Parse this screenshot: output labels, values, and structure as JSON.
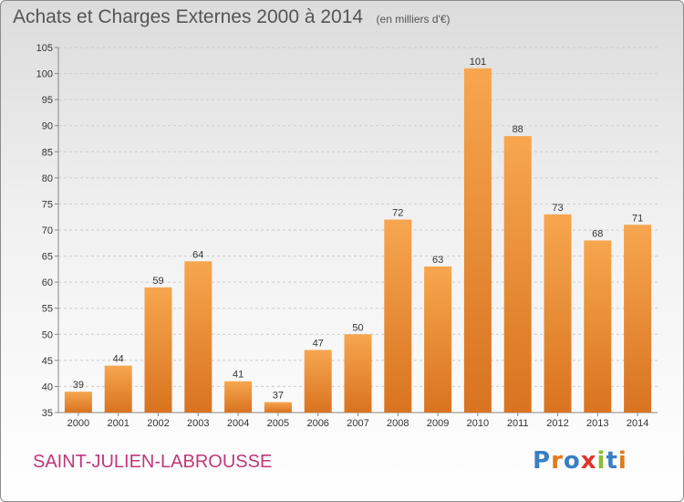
{
  "header": {
    "title": "Achats et Charges Externes 2000 à 2014",
    "unit": "(en milliers d'€)"
  },
  "footer": {
    "commune": "SAINT-JULIEN-LABROUSSE",
    "brand": "Proxiti"
  },
  "colors": {
    "bar_light": "#f7a64f",
    "bar_dark": "#d9731f",
    "grid": "#cccccc",
    "title": "#555555",
    "commune": "#c0387a",
    "brand_letters": [
      "#3a7fc4",
      "#e07b1d",
      "#3a7fc4",
      "#e0342b",
      "#8cbf2f",
      "#3a7fc4",
      "#e07b1d"
    ]
  },
  "chart_data": {
    "type": "bar",
    "title": "Achats et Charges Externes 2000 à 2014",
    "subtitle": "(en milliers d'€)",
    "xlabel": "",
    "ylabel": "",
    "categories": [
      "2000",
      "2001",
      "2002",
      "2003",
      "2004",
      "2005",
      "2006",
      "2007",
      "2008",
      "2009",
      "2010",
      "2011",
      "2012",
      "2013",
      "2014"
    ],
    "values": [
      39,
      44,
      59,
      64,
      41,
      37,
      47,
      50,
      72,
      63,
      101,
      88,
      73,
      68,
      71
    ],
    "ylim": [
      35,
      105
    ],
    "yticks": [
      35,
      40,
      45,
      50,
      55,
      60,
      65,
      70,
      75,
      80,
      85,
      90,
      95,
      100,
      105
    ],
    "grid": "horizontal dashed",
    "legend": "none"
  }
}
